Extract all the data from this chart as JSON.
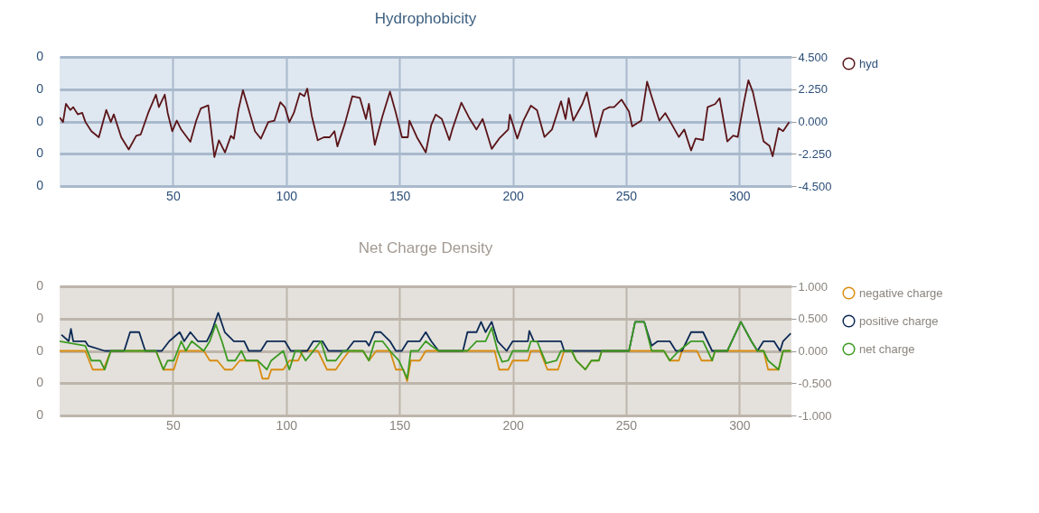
{
  "chart_data": [
    {
      "type": "line",
      "title": "Hydrophobicity",
      "xlim": [
        0,
        323
      ],
      "xticks": [
        50,
        100,
        150,
        200,
        250,
        300
      ],
      "annotations": [
        "0",
        "0",
        "0",
        "0",
        "0"
      ],
      "y2lim": [
        -4.5,
        4.5
      ],
      "y2ticks": [
        {
          "value": 4.5,
          "label": "4.500"
        },
        {
          "value": 2.25,
          "label": "2.250"
        },
        {
          "value": 0,
          "label": "0.000"
        },
        {
          "value": -2.25,
          "label": "-2.250"
        },
        {
          "value": -4.5,
          "label": "-4.500"
        }
      ],
      "grid": true,
      "legend": "right",
      "series": [
        {
          "name": "hyd",
          "color": "#5a1418",
          "axis": "y2",
          "x": [
            0,
            1.5,
            2.8,
            4.7,
            6,
            8,
            10,
            11.4,
            14,
            17.3,
            20.6,
            22.6,
            23.9,
            27.2,
            30.5,
            33.8,
            35.8,
            39.1,
            42.5,
            43.8,
            46.4,
            47.7,
            49.7,
            51.7,
            53.7,
            57.7,
            60.3,
            62.3,
            65.6,
            68.3,
            70.3,
            73,
            75.6,
            76.9,
            78.9,
            80.9,
            82.9,
            86.2,
            88.8,
            92.1,
            94.8,
            97.4,
            99.4,
            101.4,
            103.4,
            106,
            108,
            109.3,
            111.3,
            113.9,
            116.6,
            119.2,
            121.3,
            122.6,
            125.9,
            129.2,
            132.5,
            135.2,
            136.5,
            139.1,
            142.5,
            145.8,
            148.4,
            151.1,
            153.7,
            154.4,
            157.7,
            161.6,
            164,
            166,
            168.7,
            172,
            173.3,
            177.3,
            180.7,
            184,
            186.7,
            190.7,
            194,
            198,
            198.7,
            202,
            204.7,
            208,
            210.7,
            214,
            217.3,
            221.3,
            223.3,
            224.7,
            226.7,
            230.7,
            232.7,
            236.7,
            240,
            242.7,
            244.7,
            248,
            251.3,
            252.7,
            256.7,
            259.3,
            261.3,
            264.7,
            267.3,
            270,
            273.3,
            275.7,
            278.7,
            280.7,
            284,
            286,
            289.3,
            291.3,
            294.7,
            297.3,
            299.3,
            302,
            304,
            306,
            310.7,
            313.3,
            314.7,
            317.3,
            319.3,
            322
          ],
          "values": [
            0.28,
            -0.04,
            1.23,
            0.8,
            1.0,
            0.5,
            0.6,
            -0.04,
            -0.68,
            -1.1,
            0.8,
            -0.04,
            0.5,
            -1.1,
            -1.95,
            -1.0,
            -0.9,
            0.6,
            1.87,
            1.0,
            1.87,
            0.6,
            -0.68,
            0.06,
            -0.57,
            -1.42,
            0.06,
            0.9,
            1.12,
            -2.48,
            -1.31,
            -2.16,
            -1.0,
            -1.2,
            0.8,
            2.18,
            1.12,
            -0.68,
            -1.2,
            -0.04,
            0.06,
            1.34,
            1.0,
            -0.04,
            0.6,
            1.97,
            1.76,
            2.29,
            0.38,
            -1.31,
            -1.1,
            -1.1,
            -0.68,
            -1.74,
            -0.15,
            1.76,
            1.65,
            0.17,
            1.23,
            -1.63,
            0.38,
            2.08,
            0.6,
            -1.1,
            -1.1,
            0.06,
            -1.1,
            -2.16,
            -0.25,
            0.48,
            0.17,
            -1.29,
            -0.56,
            1.31,
            0.27,
            -0.56,
            0.17,
            -1.91,
            -1.19,
            -0.56,
            0.48,
            -1.19,
            0.06,
            1.1,
            0.79,
            -1.08,
            -0.56,
            1.41,
            0.17,
            1.62,
            0.06,
            1.21,
            2.04,
            -1.08,
            0.79,
            1.0,
            1.0,
            1.52,
            0.69,
            -0.35,
            0.06,
            2.77,
            1.73,
            0.06,
            0.58,
            -0.15,
            -1.08,
            -0.56,
            -2.02,
            -1.19,
            -1.29,
            1.0,
            1.21,
            1.62,
            -1.39,
            -0.98,
            -1.08,
            1.31,
            2.87,
            2.04,
            -1.39,
            -1.7,
            -2.43,
            -0.46,
            -0.67,
            -0.04
          ]
        }
      ]
    },
    {
      "type": "line",
      "title": "Net Charge Density",
      "xlim": [
        0,
        323
      ],
      "xticks": [
        50,
        100,
        150,
        200,
        250,
        300
      ],
      "annotations": [
        "0",
        "0",
        "0",
        "0",
        "0"
      ],
      "y2lim": [
        -1,
        1
      ],
      "y2ticks": [
        {
          "value": 1,
          "label": "1.000"
        },
        {
          "value": 0.5,
          "label": "0.500"
        },
        {
          "value": 0,
          "label": "0.000"
        },
        {
          "value": -0.5,
          "label": "-0.500"
        },
        {
          "value": -1,
          "label": "-1.000"
        }
      ],
      "grid": true,
      "legend": "right",
      "series": [
        {
          "name": "negative charge",
          "color": "#d88c10",
          "axis": "y2",
          "x": [
            0,
            11.3,
            14.6,
            19.3,
            22.6,
            42.5,
            45.8,
            50.4,
            53,
            63.6,
            66.3,
            69.6,
            72.9,
            76.2,
            79.5,
            87.4,
            89.5,
            92.1,
            93.4,
            98.7,
            101.4,
            105.3,
            107.4,
            114,
            118,
            121.9,
            124.6,
            127.9,
            133.9,
            136.5,
            139.8,
            145.8,
            148.4,
            151.7,
            153.4,
            155,
            159,
            161.6,
            192,
            194,
            198,
            200,
            206.7,
            208,
            212,
            215.3,
            220,
            222.7,
            226,
            228,
            232,
            234.7,
            238,
            239.3,
            266.7,
            269.3,
            273.3,
            274.7,
            281.3,
            283.3,
            288,
            289.3,
            310.7,
            312.7,
            317.3,
            319.3,
            322.7
          ],
          "values": [
            0,
            0,
            -0.29,
            -0.29,
            0,
            0,
            -0.29,
            -0.29,
            0,
            0,
            -0.15,
            -0.15,
            -0.29,
            -0.29,
            -0.15,
            -0.15,
            -0.43,
            -0.43,
            -0.29,
            -0.29,
            -0.15,
            -0.15,
            0,
            0,
            -0.29,
            -0.29,
            -0.15,
            0,
            0,
            -0.15,
            0,
            0,
            -0.29,
            -0.29,
            -0.47,
            -0.15,
            -0.15,
            0,
            0,
            -0.29,
            -0.29,
            -0.15,
            -0.15,
            0,
            0,
            -0.29,
            -0.29,
            0,
            0,
            -0.15,
            -0.29,
            -0.15,
            -0.15,
            0,
            0,
            -0.15,
            -0.15,
            0,
            0,
            -0.15,
            -0.15,
            0,
            0,
            -0.29,
            -0.29,
            0,
            0
          ]
        },
        {
          "name": "positive charge",
          "color": "#0d2a55",
          "axis": "y2",
          "x": [
            0.8,
            4,
            5,
            6,
            11.3,
            12.6,
            19.9,
            28.5,
            31.1,
            35.1,
            37.8,
            45.1,
            48.4,
            53,
            55,
            57.7,
            61,
            65,
            67,
            70,
            72.9,
            76.9,
            81.5,
            83.5,
            88.8,
            91.5,
            99.4,
            102,
            109.3,
            112,
            116,
            118.6,
            126.6,
            129.9,
            135.2,
            136.5,
            139.1,
            141.8,
            145.8,
            148.4,
            151,
            153.7,
            159,
            161.6,
            164,
            167.3,
            178,
            180,
            184,
            186,
            188,
            190.7,
            193.3,
            197.3,
            200,
            206.7,
            207.3,
            209.3,
            221.3,
            222.7,
            226,
            237.3,
            251.3,
            254,
            258,
            261.3,
            264,
            269.3,
            272,
            274.7,
            278.7,
            284,
            288,
            294.7,
            300.7,
            305.3,
            308,
            310.7,
            315.3,
            318,
            319.3,
            322.7
          ],
          "values": [
            0.25,
            0.15,
            0.34,
            0.15,
            0.15,
            0.08,
            0,
            0,
            0.29,
            0.29,
            0,
            0,
            0.15,
            0.29,
            0.15,
            0.29,
            0.15,
            0.15,
            0.29,
            0.59,
            0.29,
            0.15,
            0.15,
            0,
            0,
            0.15,
            0.15,
            0,
            0,
            0.15,
            0.15,
            0,
            0,
            0.15,
            0.15,
            0.08,
            0.29,
            0.29,
            0.15,
            0,
            0,
            0.15,
            0.15,
            0.29,
            0.15,
            0,
            0,
            0.29,
            0.29,
            0.45,
            0.29,
            0.45,
            0.15,
            0,
            0.15,
            0.15,
            0.31,
            0.15,
            0.15,
            0,
            0,
            0,
            0,
            0.45,
            0.45,
            0.08,
            0.15,
            0.15,
            0,
            0,
            0.29,
            0.29,
            0,
            0,
            0.45,
            0.15,
            0,
            0.15,
            0.15,
            0,
            0.15,
            0.27
          ]
        },
        {
          "name": "net charge",
          "color": "#3c9a22",
          "axis": "y2",
          "x": [
            0,
            11.3,
            14,
            17.9,
            19.9,
            22.6,
            42.5,
            45.8,
            47.7,
            50.4,
            53.7,
            55.7,
            58.3,
            63.6,
            66.3,
            68.9,
            71.6,
            74.2,
            77.5,
            80.2,
            82.2,
            87.4,
            91.5,
            93.4,
            98.7,
            101.4,
            104,
            106,
            108.6,
            112,
            115.3,
            118,
            121.9,
            125.2,
            129.9,
            133.9,
            136.5,
            139.1,
            142.5,
            145.8,
            149.7,
            153.4,
            155,
            158.3,
            161.6,
            164,
            167.3,
            180,
            184,
            188,
            190.7,
            193.3,
            195.3,
            198,
            200,
            206.7,
            208,
            210.7,
            214.7,
            219.3,
            221.3,
            226,
            228,
            232,
            234.7,
            238,
            239.3,
            251.3,
            254,
            258,
            261.3,
            266.7,
            269.3,
            273.3,
            278.7,
            284,
            288,
            289.3,
            294.7,
            300.7,
            305.3,
            308,
            310.7,
            312.7,
            317.3,
            319.3,
            322.7
          ],
          "values": [
            0.15,
            0.08,
            -0.15,
            -0.15,
            -0.29,
            0,
            0,
            -0.29,
            -0.15,
            -0.15,
            0.15,
            0,
            0.15,
            0,
            0.15,
            0.41,
            0.15,
            -0.15,
            -0.15,
            0,
            -0.15,
            -0.15,
            -0.29,
            -0.15,
            0,
            -0.29,
            0,
            0,
            -0.15,
            0,
            0.15,
            -0.15,
            -0.15,
            0,
            0,
            0,
            -0.15,
            0.15,
            0.15,
            0,
            -0.15,
            -0.43,
            0,
            0,
            0.15,
            0.08,
            0,
            0,
            0.15,
            0.15,
            0.36,
            0,
            -0.17,
            -0.15,
            0,
            0,
            0.15,
            0.15,
            -0.19,
            -0.15,
            0,
            0,
            -0.15,
            -0.29,
            -0.15,
            -0.15,
            0,
            0,
            0.45,
            0.45,
            0,
            0,
            -0.15,
            0,
            0.15,
            0.15,
            -0.15,
            0,
            0,
            0.45,
            0.15,
            0,
            0,
            -0.15,
            -0.29,
            0,
            0
          ]
        }
      ]
    }
  ]
}
